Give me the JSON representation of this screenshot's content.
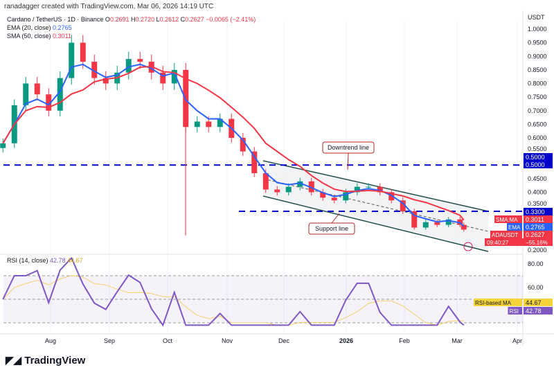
{
  "credit": "ranadagger created with TradingView.com, Mar 06, 2026 14:19 UTC",
  "symbol": "Cardano / TetherUS · 1D · Binance",
  "ohlc": {
    "o_label": "O",
    "o": "0.2691",
    "h_label": "H",
    "h": "0.2720",
    "l_label": "L",
    "l": "0.2612",
    "c_label": "C",
    "c": "0.2627",
    "change": "−0.0065 (−2.41%)"
  },
  "ema_label": "EMA (20, close)",
  "ema_value": "0.2765",
  "sma_label": "SMA (50, close)",
  "sma_value": "0.3011",
  "rsi_label": "RSI (14, close)",
  "rsi_value": "42.78",
  "rsi_ma_value": "44.67",
  "currency": "USDT",
  "logo": "TradingView",
  "colors": {
    "up": "#089981",
    "down": "#f23645",
    "ema": "#2962ff",
    "sma": "#f23645",
    "hline": "#0000cc",
    "rsi": "#7e57c2",
    "rsi_ma": "#f5d06a",
    "channel": "#1f4e4a"
  },
  "chart_data": [
    {
      "type": "candlestick",
      "dates": [
        "2025-07-07",
        "2025-07-13",
        "2025-07-19",
        "2025-07-25",
        "2025-07-31",
        "2025-08-06",
        "2025-08-12",
        "2025-08-18",
        "2025-08-24",
        "2025-08-30",
        "2025-09-05",
        "2025-09-11",
        "2025-09-17",
        "2025-09-23",
        "2025-09-29",
        "2025-10-05",
        "2025-10-11",
        "2025-10-17",
        "2025-10-23",
        "2025-10-29",
        "2025-11-04",
        "2025-11-10",
        "2025-11-16",
        "2025-11-22",
        "2025-11-28",
        "2025-12-04",
        "2025-12-10",
        "2025-12-16",
        "2025-12-22",
        "2025-12-28",
        "2026-01-03",
        "2026-01-09",
        "2026-01-15",
        "2026-01-21",
        "2026-01-27",
        "2026-02-02",
        "2026-02-08",
        "2026-02-14",
        "2026-02-20",
        "2026-02-26",
        "2026-03-04",
        "2026-03-06"
      ],
      "close": [
        0.58,
        0.72,
        0.8,
        0.76,
        0.7,
        0.82,
        0.95,
        0.88,
        0.82,
        0.8,
        0.84,
        0.89,
        0.88,
        0.84,
        0.8,
        0.85,
        0.64,
        0.66,
        0.64,
        0.67,
        0.6,
        0.55,
        0.47,
        0.41,
        0.4,
        0.42,
        0.44,
        0.4,
        0.38,
        0.37,
        0.4,
        0.42,
        0.42,
        0.4,
        0.37,
        0.33,
        0.27,
        0.29,
        0.28,
        0.3,
        0.28,
        0.2627
      ],
      "x_ticks": [
        "Aug",
        "Sep",
        "Oct",
        "Nov",
        "Dec",
        "2026",
        "Feb",
        "Mar",
        "Apr"
      ],
      "y_ticks": [
        "1.0000",
        "0.9500",
        "0.9000",
        "0.8500",
        "0.8000",
        "0.7500",
        "0.7000",
        "0.6500",
        "0.6000",
        "0.5500",
        "0.4500",
        "0.4000",
        "0.3500",
        "0.2000"
      ],
      "ylim": [
        0.18,
        1.02
      ],
      "hlines": [
        {
          "value": 0.5,
          "label": "0.5000"
        },
        {
          "value": 0.33,
          "label": "0.3300"
        }
      ],
      "annotations": [
        "Downtrend line",
        "Support line"
      ],
      "price_tags": [
        {
          "label": "SMA:MA",
          "value": "0.3011"
        },
        {
          "label": "EMA",
          "value": "0.2765"
        },
        {
          "label": "ADAUSDT",
          "value": "0.2627",
          "extra1": "−55.16%",
          "extra2": "09:40:27"
        }
      ]
    },
    {
      "type": "line",
      "title": "RSI (14, close)",
      "y_ticks": [
        "80.00",
        "60.00"
      ],
      "ylim": [
        20,
        90
      ],
      "bands": [
        30,
        70
      ],
      "tags": [
        {
          "label": "RSI-based MA",
          "value": "44.67"
        },
        {
          "label": "RSI",
          "value": "42.78"
        }
      ]
    }
  ]
}
